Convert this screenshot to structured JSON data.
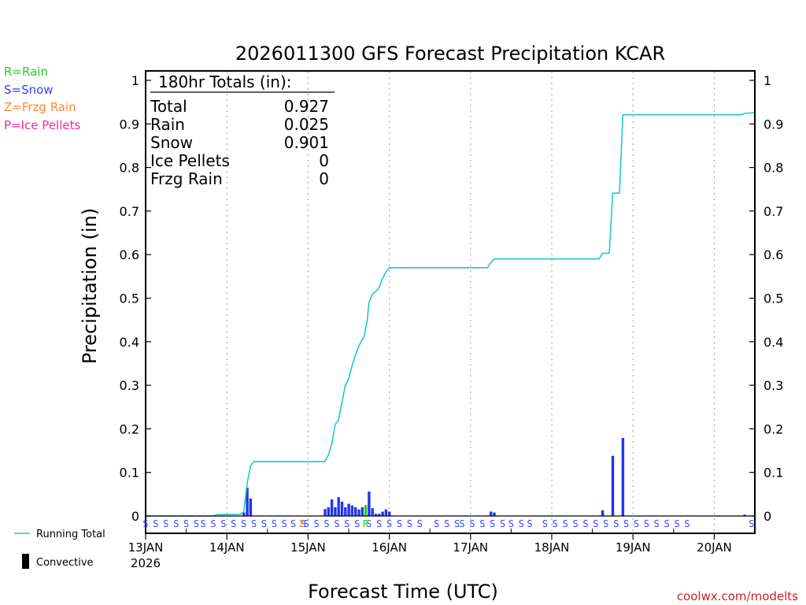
{
  "title": "2026011300 GFS Forecast Precipitation KCAR",
  "legend": [
    {
      "text": "R=Rain",
      "color": "#22cc22"
    },
    {
      "text": "S=Snow",
      "color": "#3344ff"
    },
    {
      "text": "Z=Frzg Rain",
      "color": "#ff8833"
    },
    {
      "text": "P=Ice Pellets",
      "color": "#ff2299"
    }
  ],
  "line_legend": {
    "running_total": "Running Total",
    "convective": "Convective"
  },
  "watermark": "coolwx.com/modelts",
  "totals": {
    "header": "180hr Totals (in):",
    "rows": [
      {
        "label": "Total",
        "value": "0.927"
      },
      {
        "label": "Rain",
        "value": "0.025"
      },
      {
        "label": "Snow",
        "value": "0.901"
      },
      {
        "label": "Ice Pellets",
        "value": "0"
      },
      {
        "label": "Frzg Rain",
        "value": "0"
      }
    ]
  },
  "chart_data": {
    "type": "bar",
    "title": "2026011300 GFS Forecast Precipitation KCAR",
    "xlabel": "Forecast Time (UTC)",
    "ylabel": "Precipitation (in)",
    "xlim_hours": [
      0,
      180
    ],
    "ylim": [
      -0.005,
      1.0
    ],
    "yticks": [
      0,
      0.1,
      0.2,
      0.3,
      0.4,
      0.5,
      0.6,
      0.7,
      0.8,
      0.9,
      1
    ],
    "ytick_labels": [
      "0",
      "0.1",
      "0.2",
      "0.3",
      "0.4",
      "0.5",
      "0.6",
      "0.7",
      "0.8",
      "0.9",
      "1"
    ],
    "xticks": [
      {
        "hour": 0,
        "label": "13JAN",
        "sub": "2026"
      },
      {
        "hour": 24,
        "label": "14JAN"
      },
      {
        "hour": 48,
        "label": "15JAN"
      },
      {
        "hour": 72,
        "label": "16JAN"
      },
      {
        "hour": 96,
        "label": "17JAN"
      },
      {
        "hour": 120,
        "label": "18JAN"
      },
      {
        "hour": 144,
        "label": "19JAN"
      },
      {
        "hour": 168,
        "label": "20JAN"
      }
    ],
    "bars": [
      {
        "h": 29,
        "v": 0.008,
        "t": "snow"
      },
      {
        "h": 30,
        "v": 0.065,
        "t": "snow"
      },
      {
        "h": 31,
        "v": 0.04,
        "t": "snow"
      },
      {
        "h": 53,
        "v": 0.016,
        "t": "snow"
      },
      {
        "h": 54,
        "v": 0.02,
        "t": "snow"
      },
      {
        "h": 55,
        "v": 0.038,
        "t": "snow"
      },
      {
        "h": 56,
        "v": 0.02,
        "t": "snow"
      },
      {
        "h": 57,
        "v": 0.043,
        "t": "snow"
      },
      {
        "h": 58,
        "v": 0.033,
        "t": "snow"
      },
      {
        "h": 59,
        "v": 0.02,
        "t": "snow"
      },
      {
        "h": 60,
        "v": 0.028,
        "t": "snow"
      },
      {
        "h": 61,
        "v": 0.024,
        "t": "snow"
      },
      {
        "h": 62,
        "v": 0.02,
        "t": "snow"
      },
      {
        "h": 63,
        "v": 0.015,
        "t": "snow"
      },
      {
        "h": 64,
        "v": 0.02,
        "t": "snow"
      },
      {
        "h": 65,
        "v": 0.025,
        "t": "rain"
      },
      {
        "h": 66,
        "v": 0.056,
        "t": "snow"
      },
      {
        "h": 67,
        "v": 0.018,
        "t": "snow"
      },
      {
        "h": 68,
        "v": 0.005,
        "t": "snow"
      },
      {
        "h": 69,
        "v": 0.005,
        "t": "snow"
      },
      {
        "h": 70,
        "v": 0.01,
        "t": "snow"
      },
      {
        "h": 71,
        "v": 0.015,
        "t": "snow"
      },
      {
        "h": 72,
        "v": 0.01,
        "t": "snow"
      },
      {
        "h": 102,
        "v": 0.01,
        "t": "snow"
      },
      {
        "h": 103,
        "v": 0.008,
        "t": "snow"
      },
      {
        "h": 135,
        "v": 0.013,
        "t": "snow"
      },
      {
        "h": 138,
        "v": 0.138,
        "t": "snow"
      },
      {
        "h": 141,
        "v": 0.179,
        "t": "snow"
      },
      {
        "h": 177,
        "v": 0.003,
        "t": "snow"
      }
    ],
    "running_total": [
      [
        0,
        0
      ],
      [
        20,
        0.0
      ],
      [
        21,
        0.003
      ],
      [
        28,
        0.004
      ],
      [
        29,
        0.01
      ],
      [
        30,
        0.075
      ],
      [
        31,
        0.115
      ],
      [
        32,
        0.125
      ],
      [
        53,
        0.125
      ],
      [
        54,
        0.14
      ],
      [
        55,
        0.165
      ],
      [
        56,
        0.21
      ],
      [
        57,
        0.22
      ],
      [
        58,
        0.26
      ],
      [
        59,
        0.3
      ],
      [
        60,
        0.315
      ],
      [
        61,
        0.345
      ],
      [
        62,
        0.37
      ],
      [
        63,
        0.39
      ],
      [
        64,
        0.405
      ],
      [
        64.5,
        0.41
      ],
      [
        65,
        0.43
      ],
      [
        65.5,
        0.45
      ],
      [
        66,
        0.49
      ],
      [
        67,
        0.51
      ],
      [
        68,
        0.515
      ],
      [
        69,
        0.525
      ],
      [
        70,
        0.545
      ],
      [
        71,
        0.56
      ],
      [
        72,
        0.57
      ],
      [
        101,
        0.57
      ],
      [
        102,
        0.582
      ],
      [
        103,
        0.59
      ],
      [
        134,
        0.59
      ],
      [
        135,
        0.603
      ],
      [
        137,
        0.603
      ],
      [
        138,
        0.741
      ],
      [
        140,
        0.741
      ],
      [
        141,
        0.921
      ],
      [
        176,
        0.921
      ],
      [
        177,
        0.924
      ],
      [
        180,
        0.926
      ]
    ],
    "precip_type_row": {
      "symbol": "S",
      "rain_symbol": "R",
      "frzg_symbol": "Z",
      "rain_hours": [
        65
      ],
      "frzg_hours": [
        46
      ],
      "snow_runs": [
        [
          0,
          16
        ],
        [
          17,
          43
        ],
        [
          43.6,
          47
        ],
        [
          47.5,
          64
        ],
        [
          66,
          83
        ],
        [
          86,
          92
        ],
        [
          93.5,
          107
        ],
        [
          108,
          111
        ],
        [
          113.5,
          115
        ],
        [
          118,
          162
        ],
        [
          179,
          180
        ]
      ]
    }
  }
}
